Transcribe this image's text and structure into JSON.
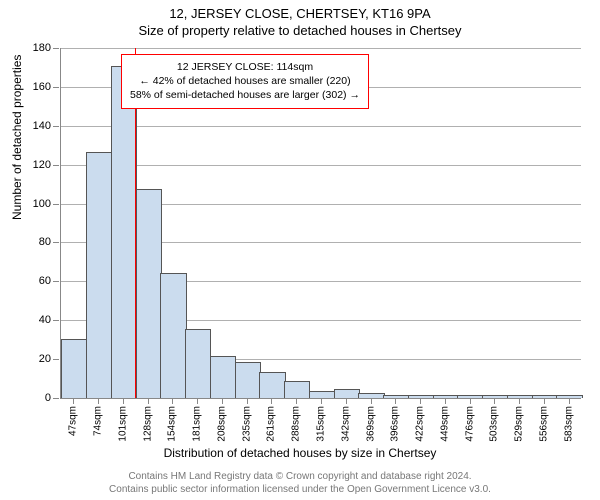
{
  "title_main": "12, JERSEY CLOSE, CHERTSEY, KT16 9PA",
  "title_sub": "Size of property relative to detached houses in Chertsey",
  "chart": {
    "type": "bar",
    "xlabel": "Distribution of detached houses by size in Chertsey",
    "ylabel": "Number of detached properties",
    "ylim": [
      0,
      180
    ],
    "ytick_step": 20,
    "xtick_labels": [
      "47sqm",
      "74sqm",
      "101sqm",
      "128sqm",
      "154sqm",
      "181sqm",
      "208sqm",
      "235sqm",
      "261sqm",
      "288sqm",
      "315sqm",
      "342sqm",
      "369sqm",
      "396sqm",
      "422sqm",
      "449sqm",
      "476sqm",
      "503sqm",
      "529sqm",
      "556sqm",
      "583sqm"
    ],
    "values": [
      30,
      126,
      170,
      107,
      64,
      35,
      21,
      18,
      13,
      8,
      3,
      4,
      2,
      1,
      1,
      1,
      1,
      1,
      1,
      1,
      1
    ],
    "bar_color": "#cbdcee",
    "bar_border": "#555555",
    "grid_color": "#b0b0b0",
    "axis_color": "#888888",
    "background": "#ffffff",
    "reference_line": {
      "x_value": 114,
      "color": "#ff0000"
    },
    "x_range": [
      34,
      597
    ],
    "annotation": {
      "line1": "12 JERSEY CLOSE: 114sqm",
      "line2": "← 42% of detached houses are smaller (220)",
      "line3": "58% of semi-detached houses are larger (302) →",
      "border_color": "#ff0000",
      "fontsize": 10.5
    },
    "label_fontsize": 12,
    "tick_fontsize": 11
  },
  "footer": {
    "line1": "Contains HM Land Registry data © Crown copyright and database right 2024.",
    "line2": "Contains public sector information licensed under the Open Government Licence v3.0."
  }
}
